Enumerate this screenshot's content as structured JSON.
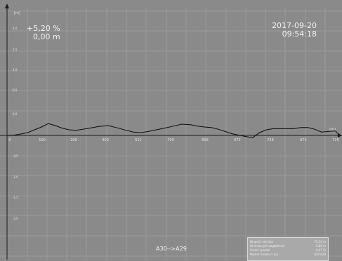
{
  "readout": {
    "grade": "+5,20 %",
    "distance": "0,00 m",
    "date": "2017-09-20",
    "time": "09:54:18"
  },
  "section_label": "A30-->A29",
  "info_box": {
    "rows": [
      {
        "label": "Długość odcinka",
        "value": "72,52",
        "unit": "m"
      },
      {
        "label": "Orientacyjne zagłębienie",
        "value": "0,80",
        "unit": "m"
      },
      {
        "label": "Średni spadek",
        "value": "-0,47",
        "unit": "%"
      },
      {
        "label": "Numer kanału / rury",
        "value": "A30",
        "unit": "A29"
      }
    ]
  },
  "colors": {
    "background": "#8a8a8a",
    "grid": "#9a9a9a",
    "baseline": "#1a1a1a",
    "profile": "#0a0a0a",
    "text": "#f2f2f2"
  },
  "chart_data": {
    "type": "line",
    "xlabel": "[m]",
    "ylabel": "[m]",
    "xlim": [
      0,
      72.5
    ],
    "ylim": [
      -2.5,
      2.5
    ],
    "x_ticks": [
      "0",
      "100",
      "200",
      "400",
      "511",
      "700",
      "816",
      "672",
      "728",
      "675",
      "725"
    ],
    "y_ticks_pos": [
      "2,0",
      "1,5",
      "1,0",
      "0,5",
      "0,0"
    ],
    "y_ticks_neg": [
      "-0,5",
      "-1,0",
      "-1,5",
      "-2,0"
    ],
    "grid": true,
    "series": [
      {
        "x": [
          0,
          1.5,
          3,
          4.5,
          6,
          7.5,
          9,
          10.5,
          12,
          13.5,
          15,
          16.5,
          18,
          20,
          22,
          24,
          26,
          27.5,
          29,
          30.5,
          32,
          34,
          36,
          38,
          40,
          41.5,
          43,
          44.5,
          46,
          47.5,
          49,
          50.5,
          52,
          53.5,
          55,
          56.5,
          58,
          59.5,
          61,
          62.5,
          64,
          65.5,
          67,
          68.5,
          70,
          71.5,
          72.5
        ],
        "values": [
          0,
          0.01,
          0.05,
          0.1,
          0.2,
          0.3,
          0.42,
          0.35,
          0.26,
          0.2,
          0.18,
          0.22,
          0.26,
          0.32,
          0.35,
          0.27,
          0.18,
          0.12,
          0.1,
          0.13,
          0.18,
          0.25,
          0.32,
          0.4,
          0.38,
          0.33,
          0.3,
          0.28,
          0.22,
          0.14,
          0.06,
          0.01,
          -0.04,
          -0.08,
          0.1,
          0.2,
          0.24,
          0.24,
          0.24,
          0.24,
          0.28,
          0.28,
          0.22,
          0.12,
          0.14,
          0.16,
          0
        ]
      }
    ]
  }
}
